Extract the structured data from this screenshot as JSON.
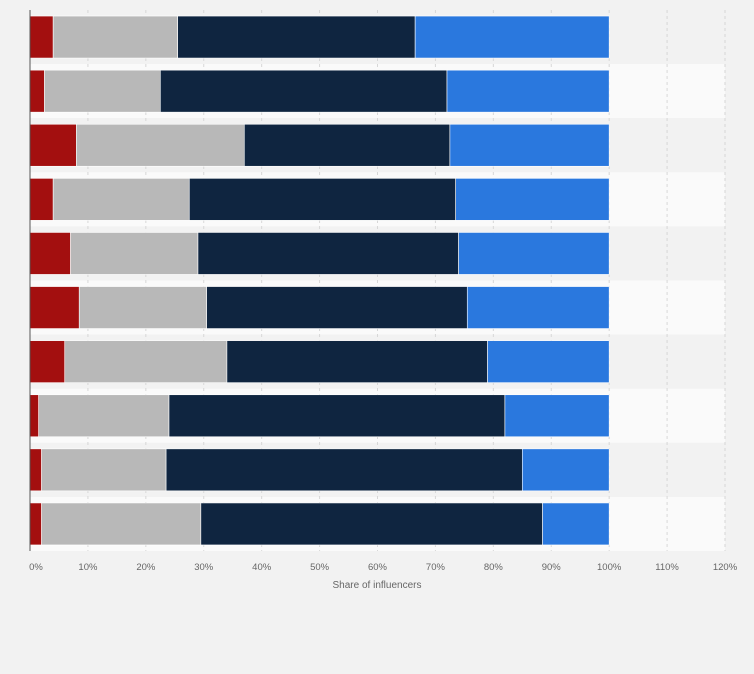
{
  "chart_data": {
    "type": "bar",
    "orientation": "horizontal",
    "stacked": true,
    "categories": [
      "",
      "",
      "",
      "",
      "",
      "",
      "",
      "",
      "",
      ""
    ],
    "series": [
      {
        "color": "#a30f0f",
        "values": [
          4,
          2.5,
          8,
          4,
          7,
          8.5,
          6,
          1.5,
          2,
          2
        ]
      },
      {
        "color": "#b8b8b8",
        "values": [
          21.5,
          20,
          29,
          23.5,
          22,
          22,
          28,
          22.5,
          21.5,
          27.5
        ]
      },
      {
        "color": "#0f2540",
        "values": [
          41,
          49.5,
          35.5,
          46,
          45,
          45,
          45,
          58,
          61.5,
          59
        ]
      },
      {
        "color": "#2a78de",
        "values": [
          33.5,
          28,
          27.5,
          26.5,
          26,
          24.5,
          21,
          18,
          15,
          11.5
        ]
      }
    ],
    "xlabel": "Share of influencers",
    "xlim": [
      0,
      120
    ],
    "xticks": [
      "0%",
      "10%",
      "20%",
      "30%",
      "40%",
      "50%",
      "60%",
      "70%",
      "80%",
      "90%",
      "100%",
      "110%",
      "120%"
    ],
    "grid": true,
    "legend": "none"
  }
}
